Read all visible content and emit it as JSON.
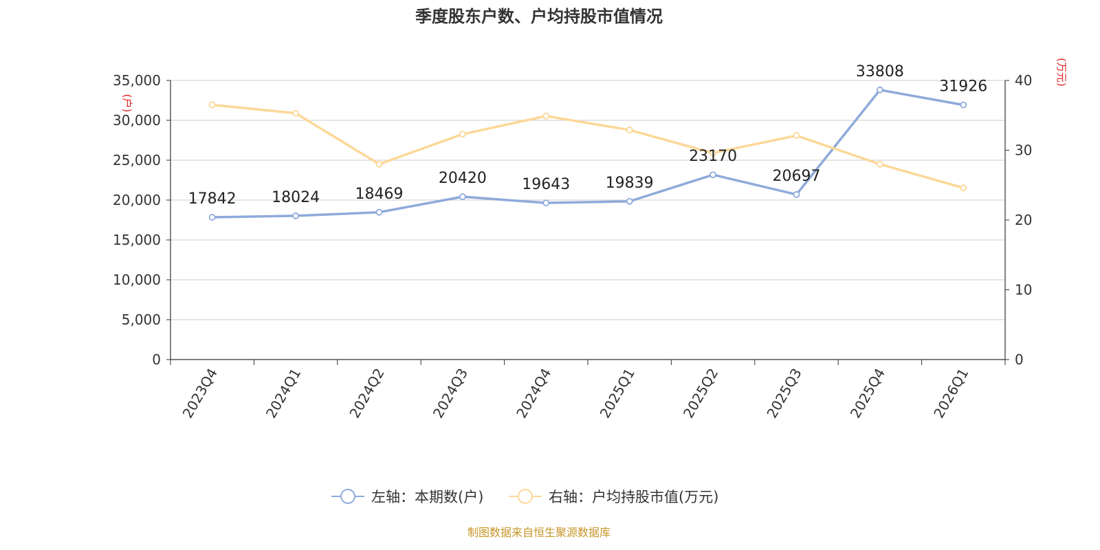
{
  "chart_data": {
    "type": "line",
    "title": "季度股东户数、户均持股市值情况",
    "categories": [
      "2023Q4",
      "2024Q1",
      "2024Q2",
      "2024Q3",
      "2024Q4",
      "2025Q1",
      "2025Q2",
      "2025Q3",
      "2025Q4",
      "2026Q1"
    ],
    "series": [
      {
        "name": "左轴：本期数(户)",
        "axis": "left",
        "color": "#8eaadb",
        "values": [
          17842,
          18024,
          18469,
          20420,
          19643,
          19839,
          23170,
          20697,
          33808,
          31926
        ],
        "labels": [
          "17842",
          "18024",
          "18469",
          "20420",
          "19643",
          "19839",
          "23170",
          "20697",
          "33808",
          "31926"
        ]
      },
      {
        "name": "右轴：户均持股市值(万元)",
        "axis": "right",
        "color": "#fcd898",
        "values": [
          36.5,
          35.3,
          28.0,
          32.3,
          34.9,
          32.9,
          29.6,
          32.1,
          28.0,
          24.6
        ]
      }
    ],
    "y_left": {
      "unit": "(户)",
      "ylim": [
        0,
        35000
      ],
      "ticks": [
        "0",
        "5,000",
        "10,000",
        "15,000",
        "20,000",
        "25,000",
        "30,000",
        "35,000"
      ],
      "tick_values": [
        0,
        5000,
        10000,
        15000,
        20000,
        25000,
        30000,
        35000
      ]
    },
    "y_right": {
      "unit": "(万元)",
      "ylim": [
        0,
        40
      ],
      "ticks": [
        "0",
        "10",
        "20",
        "30",
        "40"
      ],
      "tick_values": [
        0,
        10,
        20,
        30,
        40
      ]
    },
    "grid": true,
    "legend_position": "bottom-center"
  },
  "source": "制图数据来自恒生聚源数据库"
}
